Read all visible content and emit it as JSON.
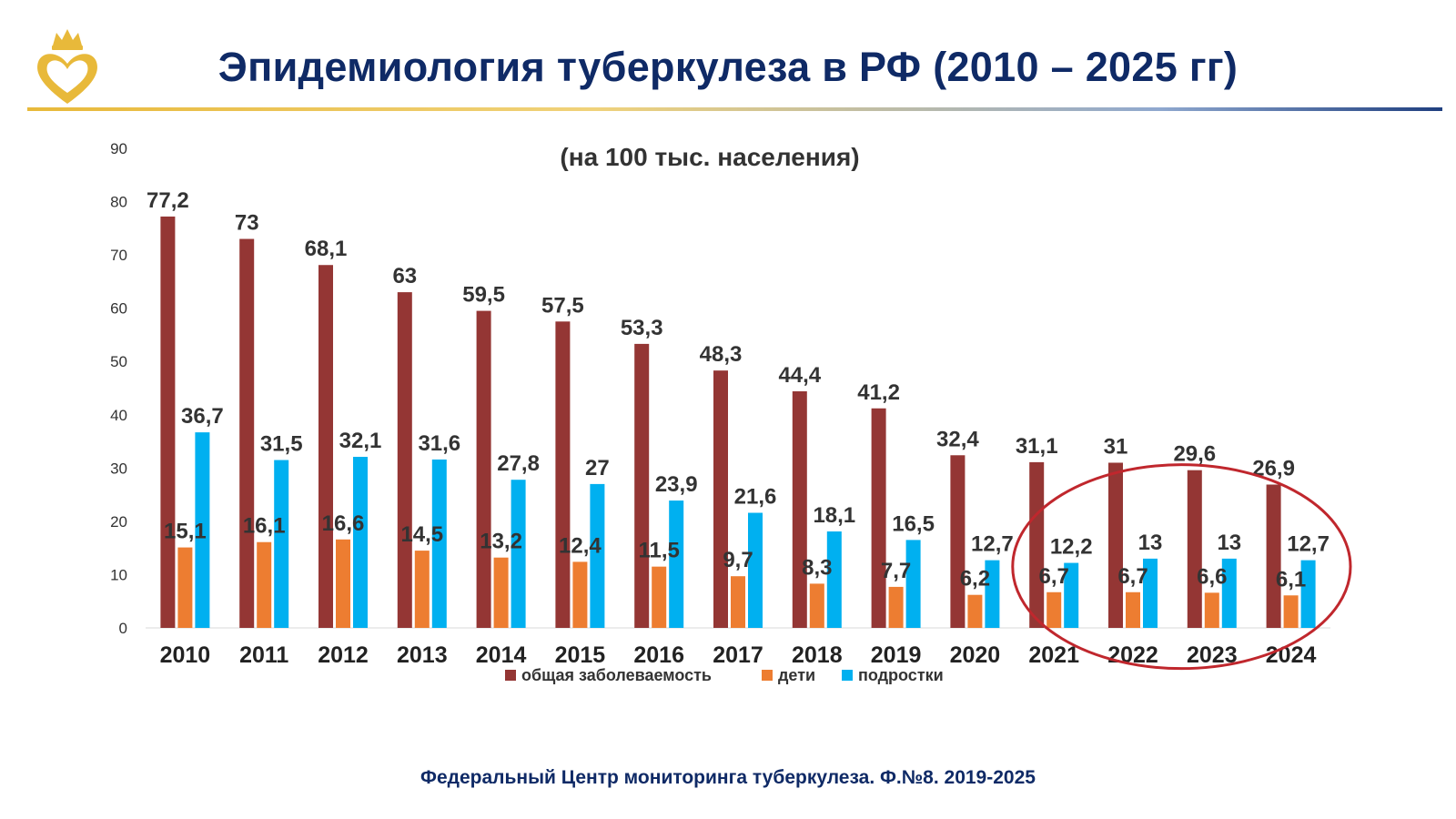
{
  "header": {
    "title": "Эпидемиология туберкулеза в РФ (2010 – 2025 гг)"
  },
  "footer": {
    "source": "Федеральный Центр мониторинга туберкулеза.  Ф.№8.  2019-2025"
  },
  "colors": {
    "title": "#0f2a66",
    "series_total": "#943634",
    "series_children": "#ed7d31",
    "series_teens": "#00b0f0",
    "highlight_ellipse": "#c0272d",
    "logo": "#e8b93a"
  },
  "icons": {
    "logo": "crown-heart-logo"
  },
  "chart_data": {
    "type": "bar",
    "title": "(на 100 тыс. населения)",
    "xlabel": "",
    "ylabel": "",
    "ylim": [
      0,
      90
    ],
    "yticks": [
      0,
      10,
      20,
      30,
      40,
      50,
      60,
      70,
      80,
      90
    ],
    "grid": false,
    "legend_position": "bottom",
    "categories": [
      "2010",
      "2011",
      "2012",
      "2013",
      "2014",
      "2015",
      "2016",
      "2017",
      "2018",
      "2019",
      "2020",
      "2021",
      "2022",
      "2023",
      "2024"
    ],
    "series": [
      {
        "name": "общая заболеваемость",
        "color": "#943634",
        "values": [
          77.2,
          73,
          68.1,
          63,
          59.5,
          57.5,
          53.3,
          48.3,
          44.4,
          41.2,
          32.4,
          31.1,
          31,
          29.6,
          26.9
        ],
        "labels": [
          "77,2",
          "73",
          "68,1",
          "63",
          "59,5",
          "57,5",
          "53,3",
          "48,3",
          "44,4",
          "41,2",
          "32,4",
          "31,1",
          "31",
          "29,6",
          "26,9"
        ]
      },
      {
        "name": "дети",
        "color": "#ed7d31",
        "values": [
          15.1,
          16.1,
          16.6,
          14.5,
          13.2,
          12.4,
          11.5,
          9.7,
          8.3,
          7.7,
          6.2,
          6.7,
          6.7,
          6.6,
          6.1
        ],
        "labels": [
          "15,1",
          "16,1",
          "16,6",
          "14,5",
          "13,2",
          "12,4",
          "11,5",
          "9,7",
          "8,3",
          "7,7",
          "6,2",
          "6,7",
          "6,7",
          "6,6",
          "6,1"
        ]
      },
      {
        "name": "подростки",
        "color": "#00b0f0",
        "values": [
          36.7,
          31.5,
          32.1,
          31.6,
          27.8,
          27,
          23.9,
          21.6,
          18.1,
          16.5,
          12.7,
          12.2,
          13,
          13,
          12.7
        ],
        "labels": [
          "36,7",
          "31,5",
          "32,1",
          "31,6",
          "27,8",
          "27",
          "23,9",
          "21,6",
          "18,1",
          "16,5",
          "12,7",
          "12,2",
          "13",
          "13",
          "12,7"
        ]
      }
    ],
    "highlight": {
      "shape": "ellipse",
      "categories": [
        "2021",
        "2022",
        "2023",
        "2024"
      ]
    }
  }
}
